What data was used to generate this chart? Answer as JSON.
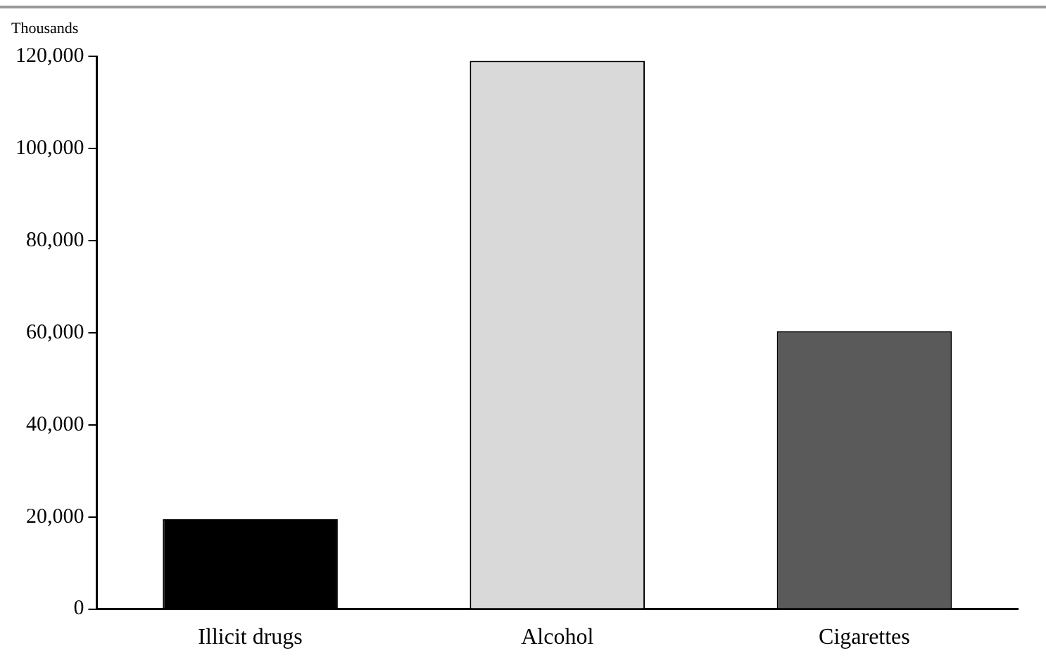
{
  "chart_data": {
    "type": "bar",
    "ylabel": "Thousands",
    "categories": [
      "Illicit drugs",
      "Alcohol",
      "Cigarettes"
    ],
    "values": [
      19500,
      119000,
      60300
    ],
    "colors": [
      "#000000",
      "#d9d9d9",
      "#5a5a5a"
    ],
    "ylim": [
      0,
      120000
    ],
    "yticks": [
      {
        "value": 0,
        "label": "0"
      },
      {
        "value": 20000,
        "label": "20,000"
      },
      {
        "value": 40000,
        "label": "40,000"
      },
      {
        "value": 60000,
        "label": "60,000"
      },
      {
        "value": 80000,
        "label": "80,000"
      },
      {
        "value": 100000,
        "label": "100,000"
      },
      {
        "value": 120000,
        "label": "120,000"
      }
    ],
    "grid": false,
    "legend": false
  }
}
